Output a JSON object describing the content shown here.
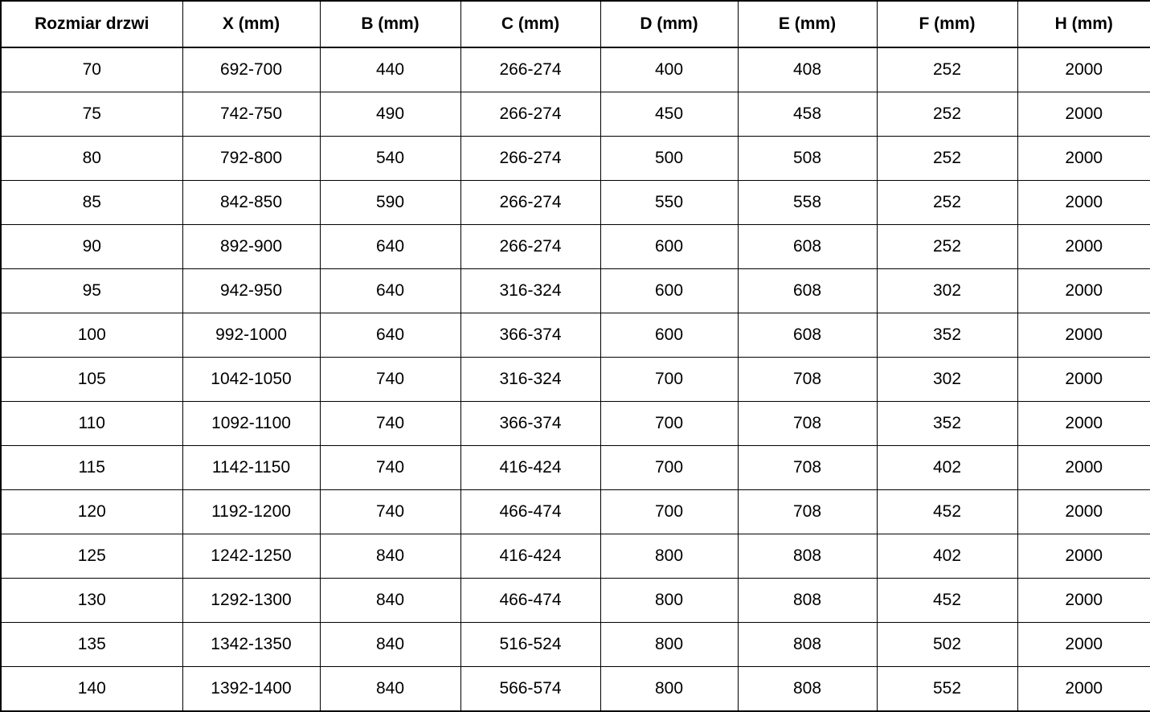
{
  "style": {
    "text_color": "#000000",
    "border_color": "#000000",
    "background_color": "#ffffff"
  },
  "table": {
    "columns": [
      "Rozmiar drzwi",
      "X (mm)",
      "B (mm)",
      "C (mm)",
      "D (mm)",
      "E (mm)",
      "F (mm)",
      "H (mm)"
    ],
    "rows": [
      [
        "70",
        "692-700",
        "440",
        "266-274",
        "400",
        "408",
        "252",
        "2000"
      ],
      [
        "75",
        "742-750",
        "490",
        "266-274",
        "450",
        "458",
        "252",
        "2000"
      ],
      [
        "80",
        "792-800",
        "540",
        "266-274",
        "500",
        "508",
        "252",
        "2000"
      ],
      [
        "85",
        "842-850",
        "590",
        "266-274",
        "550",
        "558",
        "252",
        "2000"
      ],
      [
        "90",
        "892-900",
        "640",
        "266-274",
        "600",
        "608",
        "252",
        "2000"
      ],
      [
        "95",
        "942-950",
        "640",
        "316-324",
        "600",
        "608",
        "302",
        "2000"
      ],
      [
        "100",
        "992-1000",
        "640",
        "366-374",
        "600",
        "608",
        "352",
        "2000"
      ],
      [
        "105",
        "1042-1050",
        "740",
        "316-324",
        "700",
        "708",
        "302",
        "2000"
      ],
      [
        "110",
        "1092-1100",
        "740",
        "366-374",
        "700",
        "708",
        "352",
        "2000"
      ],
      [
        "115",
        "1142-1150",
        "740",
        "416-424",
        "700",
        "708",
        "402",
        "2000"
      ],
      [
        "120",
        "1192-1200",
        "740",
        "466-474",
        "700",
        "708",
        "452",
        "2000"
      ],
      [
        "125",
        "1242-1250",
        "840",
        "416-424",
        "800",
        "808",
        "402",
        "2000"
      ],
      [
        "130",
        "1292-1300",
        "840",
        "466-474",
        "800",
        "808",
        "452",
        "2000"
      ],
      [
        "135",
        "1342-1350",
        "840",
        "516-524",
        "800",
        "808",
        "502",
        "2000"
      ],
      [
        "140",
        "1392-1400",
        "840",
        "566-574",
        "800",
        "808",
        "552",
        "2000"
      ]
    ]
  }
}
